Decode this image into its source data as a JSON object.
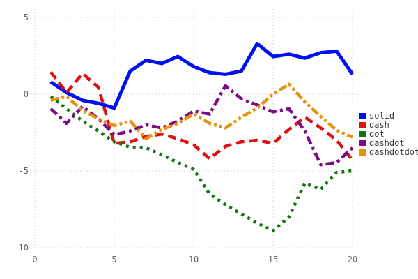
{
  "chart": {
    "background": "#ffffff",
    "grid_color": "#cfcfda",
    "tick_label_color": "#63636e",
    "legend_text_color": "#3a3a3a",
    "x_tick_labels": [
      "0",
      "5",
      "10",
      "15",
      "20"
    ],
    "y_tick_labels": [
      "5",
      "0",
      "-5",
      "-10"
    ]
  },
  "chart_data": {
    "type": "line",
    "title": "",
    "xlabel": "",
    "ylabel": "",
    "xlim": [
      0,
      20
    ],
    "ylim": [
      -10,
      5
    ],
    "x_ticks": [
      0,
      5,
      10,
      15,
      20
    ],
    "y_ticks": [
      5,
      0,
      -5,
      -10
    ],
    "grid": true,
    "legend_position": "right-middle",
    "x": [
      1,
      2,
      3,
      4,
      5,
      6,
      7,
      8,
      9,
      10,
      11,
      12,
      13,
      14,
      15,
      16,
      17,
      18,
      19,
      20
    ],
    "series": [
      {
        "name": "solid",
        "color": "#0010ee",
        "line_style": "solid",
        "values": [
          0.8,
          0.1,
          -0.4,
          -0.6,
          -0.9,
          1.5,
          2.2,
          2.0,
          2.45,
          1.8,
          1.4,
          1.3,
          1.5,
          3.3,
          2.45,
          2.6,
          2.35,
          2.7,
          2.8,
          1.3
        ]
      },
      {
        "name": "dash",
        "color": "#dd1111",
        "line_style": "dash",
        "values": [
          1.45,
          0.1,
          1.35,
          0.45,
          -3.2,
          -3.1,
          -2.75,
          -2.6,
          -2.9,
          -3.3,
          -4.2,
          -3.4,
          -3.1,
          -3.0,
          -3.2,
          -2.3,
          -1.5,
          -2.2,
          -3.0,
          -4.3
        ]
      },
      {
        "name": "dot",
        "color": "#117711",
        "line_style": "dot",
        "values": [
          -0.15,
          -0.95,
          -1.75,
          -2.4,
          -3.1,
          -3.45,
          -3.5,
          -3.95,
          -4.45,
          -4.9,
          -6.5,
          -7.2,
          -7.8,
          -8.4,
          -8.9,
          -8.0,
          -5.8,
          -6.2,
          -5.1,
          -5.0
        ]
      },
      {
        "name": "dashdot",
        "color": "#7d0a86",
        "line_style": "dashdot",
        "values": [
          -0.95,
          -1.9,
          -0.8,
          -1.6,
          -2.65,
          -2.4,
          -2.0,
          -2.2,
          -1.75,
          -1.1,
          -1.3,
          0.55,
          -0.3,
          -0.7,
          -1.15,
          -0.95,
          -2.4,
          -4.6,
          -4.45,
          -3.5
        ]
      },
      {
        "name": "dashdotdot",
        "color": "#e8930c",
        "line_style": "dashdotdot",
        "values": [
          -0.4,
          -0.15,
          -1.05,
          -1.6,
          -2.05,
          -1.75,
          -2.9,
          -2.3,
          -1.9,
          -1.3,
          -1.9,
          -2.2,
          -1.5,
          -0.9,
          0.0,
          0.65,
          -0.5,
          -1.45,
          -2.35,
          -2.8
        ]
      }
    ]
  }
}
